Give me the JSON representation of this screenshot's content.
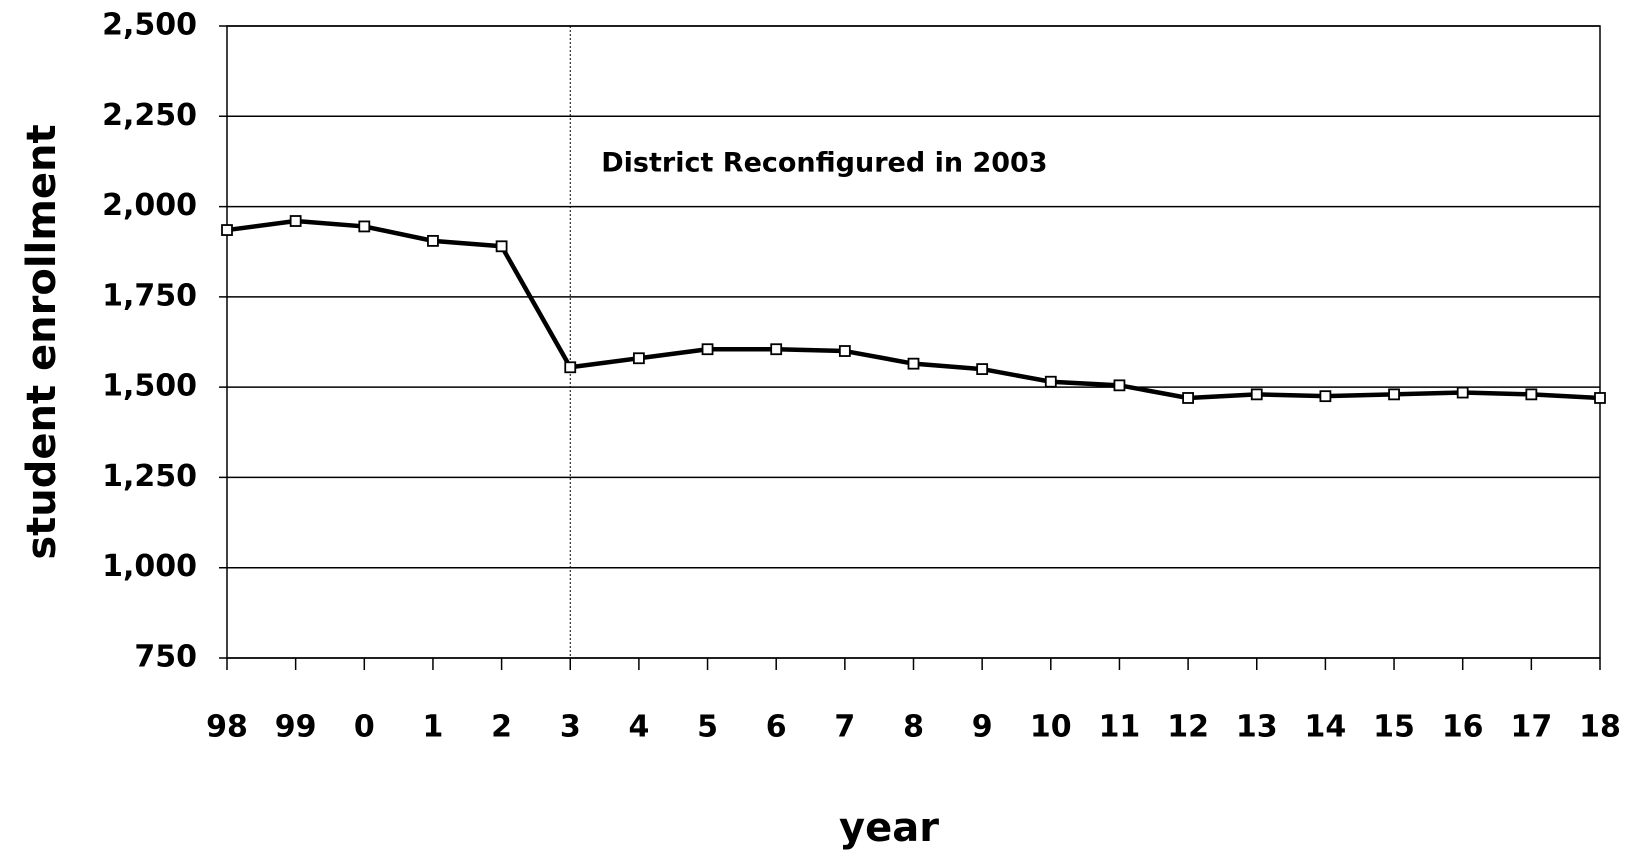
{
  "chart_data": {
    "type": "line",
    "ylabel": "student enrollment",
    "xlabel": "year",
    "annotation": {
      "text": "District Reconfigured in 2003",
      "x": "3"
    },
    "categories": [
      "98",
      "99",
      "0",
      "1",
      "2",
      "3",
      "4",
      "5",
      "6",
      "7",
      "8",
      "9",
      "10",
      "11",
      "12",
      "13",
      "14",
      "15",
      "16",
      "17",
      "18"
    ],
    "series": [
      {
        "name": "student enrollment",
        "color": "#000000",
        "values": [
          1935,
          1960,
          1945,
          1905,
          1890,
          1555,
          1580,
          1605,
          1605,
          1600,
          1565,
          1550,
          1515,
          1505,
          1470,
          1480,
          1475,
          1480,
          1485,
          1480,
          1470
        ]
      }
    ],
    "ylim": [
      750,
      2500
    ],
    "yticks": [
      750,
      {
        "value": 1000,
        "label": "1,000"
      },
      {
        "value": 1250,
        "label": "1,250"
      },
      {
        "value": 1500,
        "label": "1,500"
      },
      {
        "value": 1750,
        "label": "1,750"
      },
      {
        "value": 2000,
        "label": "2,000"
      },
      {
        "value": 2250,
        "label": "2,250"
      },
      {
        "value": 2500,
        "label": "2,500"
      }
    ],
    "grid": true
  }
}
